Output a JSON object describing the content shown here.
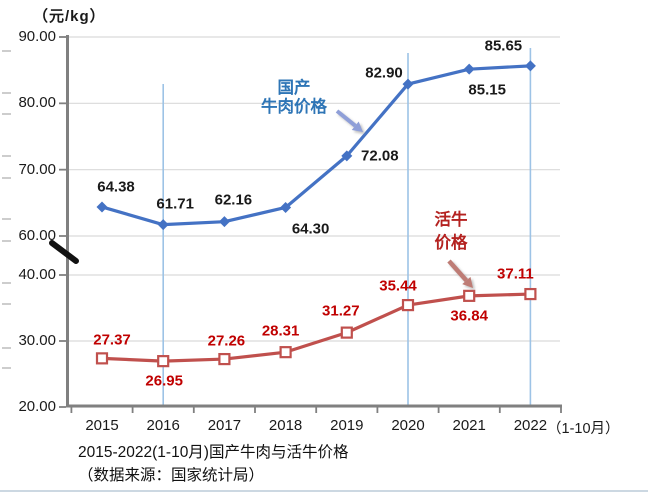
{
  "unit_label": "（元/kg）",
  "caption": {
    "line1": "2015-2022(1-10月)国产牛肉与活牛价格",
    "line2": "（数据来源：国家统计局）"
  },
  "x_axis": {
    "categories": [
      "2015",
      "2016",
      "2017",
      "2018",
      "2019",
      "2020",
      "2021",
      "2022"
    ],
    "suffix": "（1-10月）"
  },
  "y_axis": {
    "tick_labels": [
      "90.00",
      "80.00",
      "70.00",
      "60.00",
      "40.00",
      "30.00",
      "20.00"
    ],
    "tick_values": [
      90,
      80,
      70,
      60,
      40,
      30,
      20
    ],
    "has_axis_break": true,
    "break_between": [
      40,
      60
    ]
  },
  "chart_data": {
    "type": "line",
    "title": "2015-2022(1-10月)国产牛肉与活牛价格",
    "source_note": "（数据来源：国家统计局）",
    "ylabel": "（元/kg）",
    "categories": [
      "2015",
      "2016",
      "2017",
      "2018",
      "2019",
      "2020",
      "2021",
      "2022（1-10月）"
    ],
    "ylim_segments": [
      [
        20,
        40
      ],
      [
        60,
        90
      ]
    ],
    "grid": "horizontal",
    "series": [
      {
        "name": "国产牛肉价格",
        "color": "#4472C4",
        "marker": "diamond",
        "label_color": "#1a1a1a",
        "values": [
          64.38,
          61.71,
          62.16,
          64.3,
          72.08,
          82.9,
          85.15,
          85.65
        ]
      },
      {
        "name": "活牛价格",
        "color": "#C0504D",
        "marker": "open-square",
        "label_color": "#C00000",
        "values": [
          27.37,
          26.95,
          27.26,
          28.31,
          31.27,
          35.44,
          36.84,
          37.11
        ]
      }
    ],
    "annotations": [
      {
        "text_lines": [
          "国产",
          "牛肉价格"
        ],
        "color": "#2E75B6",
        "arrow_color": "#8F9FD8"
      },
      {
        "text_lines": [
          "活牛",
          "价格"
        ],
        "color": "#B42220",
        "arrow_color": "#BE7B74"
      }
    ],
    "ref_line_years": [
      "2016",
      "2020",
      "2022"
    ],
    "ref_line_color": "#9DC3E6",
    "gridline_color": "#D9D9D9",
    "axis_color": "#808080"
  }
}
